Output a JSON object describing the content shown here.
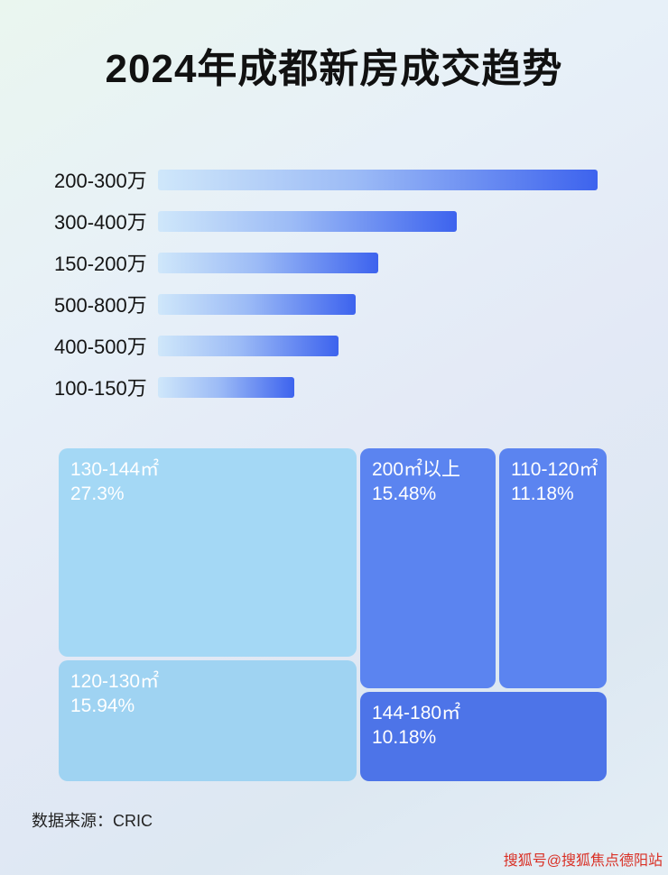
{
  "title": "2024年成都新房成交趋势",
  "chart_data": [
    {
      "type": "bar",
      "orientation": "horizontal",
      "title": "2024年成都新房成交趋势",
      "categories": [
        "200-300万",
        "300-400万",
        "150-200万",
        "500-800万",
        "400-500万",
        "100-150万"
      ],
      "values": [
        100,
        68,
        50,
        45,
        41,
        31
      ],
      "value_note": "relative bar lengths, max = 100 (no numeric labels shown in image)",
      "xlim": [
        0,
        100
      ],
      "grid": false,
      "legend": false
    },
    {
      "type": "treemap",
      "items": [
        {
          "label": "130-144㎡",
          "value": 27.3,
          "display": "27.3%"
        },
        {
          "label": "200㎡以上",
          "value": 15.48,
          "display": "15.48%"
        },
        {
          "label": "110-120㎡",
          "value": 11.18,
          "display": "11.18%"
        },
        {
          "label": "120-130㎡",
          "value": 15.94,
          "display": "15.94%"
        },
        {
          "label": "144-180㎡",
          "value": 10.18,
          "display": "10.18%"
        }
      ]
    }
  ],
  "footer": {
    "source": "数据来源：CRIC"
  },
  "watermark": "搜狐号@搜狐焦点德阳站",
  "colors": {
    "bar_gradient_start": "#cfe7fa",
    "bar_gradient_end": "#3d63ee",
    "treemap_light_1": "#a4d8f5",
    "treemap_light_2": "#9fd3f2",
    "treemap_medium": "#5b84f0",
    "treemap_dark": "#4d74e8",
    "title_text": "#111111",
    "watermark_text": "#d93025"
  }
}
